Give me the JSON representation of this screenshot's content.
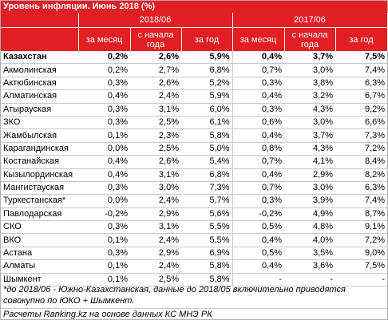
{
  "title": "Уровень инфляции. Июнь 2018 (%)",
  "periods": [
    "2018/06",
    "2017/06"
  ],
  "subheaders": [
    "за месяц",
    "с начала года",
    "за год"
  ],
  "rows": [
    {
      "name": "Казахстан",
      "v": [
        "0,2%",
        "2,6%",
        "5,9%",
        "0,4%",
        "3,7%",
        "7,5%"
      ],
      "bold": true
    },
    {
      "name": "Акмолинская",
      "v": [
        "0,2%",
        "2,7%",
        "6,8%",
        "0,7%",
        "3,0%",
        "7,4%"
      ]
    },
    {
      "name": "Актюбинская",
      "v": [
        "0,3%",
        "2,6%",
        "5,2%",
        "0,3%",
        "3,8%",
        "6,3%"
      ]
    },
    {
      "name": "Алматинская",
      "v": [
        "0,4%",
        "2,4%",
        "5,9%",
        "0,4%",
        "3,2%",
        "6,7%"
      ]
    },
    {
      "name": "Атырауская",
      "v": [
        "0,3%",
        "3,1%",
        "6,0%",
        "0,3%",
        "4,3%",
        "9,2%"
      ]
    },
    {
      "name": "ЗКО",
      "v": [
        "0,3%",
        "2,5%",
        "6,1%",
        "0,6%",
        "3,0%",
        "6,6%"
      ]
    },
    {
      "name": "Жамбылская",
      "v": [
        "0,1%",
        "2,3%",
        "5,8%",
        "0,4%",
        "3,7%",
        "7,3%"
      ]
    },
    {
      "name": "Карагандинская",
      "v": [
        "0,0%",
        "2,5%",
        "5,0%",
        "0,8%",
        "4,3%",
        "7,2%"
      ]
    },
    {
      "name": "Костанайская",
      "v": [
        "0,4%",
        "2,6%",
        "5,4%",
        "0,7%",
        "4,1%",
        "8,4%"
      ]
    },
    {
      "name": "Кызылординская",
      "v": [
        "0,4%",
        "3,1%",
        "6,8%",
        "0,4%",
        "2,9%",
        "8,2%"
      ]
    },
    {
      "name": "Мангистауская",
      "v": [
        "0,3%",
        "3,0%",
        "7,3%",
        "0,7%",
        "3,0%",
        "6,3%"
      ]
    },
    {
      "name": "Туркестанская*",
      "v": [
        "0,0%",
        "2,4%",
        "5,7%",
        "0,3%",
        "3,9%",
        "7,4%"
      ]
    },
    {
      "name": "Павлодарская",
      "v": [
        "-0,2%",
        "2,9%",
        "5,6%",
        "-0,2%",
        "4,9%",
        "8,7%"
      ]
    },
    {
      "name": "СКО",
      "v": [
        "0,3%",
        "3,1%",
        "5,5%",
        "0,5%",
        "4,8%",
        "9,1%"
      ]
    },
    {
      "name": "ВКО",
      "v": [
        "0,1%",
        "2,4%",
        "5,5%",
        "0,4%",
        "4,0%",
        "7,2%"
      ]
    },
    {
      "name": "Астана",
      "v": [
        "0,3%",
        "2,9%",
        "6,9%",
        "0,5%",
        "3,5%",
        "9,0%"
      ]
    },
    {
      "name": "Алматы",
      "v": [
        "0,1%",
        "2,4%",
        "5,8%",
        "0,4%",
        "3,6%",
        "7,5%"
      ]
    },
    {
      "name": "Шымкент",
      "v": [
        "0,1%",
        "2,5%",
        "5,8%",
        "-",
        "-",
        "-"
      ]
    }
  ],
  "footnote": "*до 2018/06 - Южно-Казахстанская, данные до 2018/05 включительно приводятся совокупно по ЮКО + Шымкент.",
  "source": "Расчеты Ranking.kz на основе данных КС МНЭ РК"
}
